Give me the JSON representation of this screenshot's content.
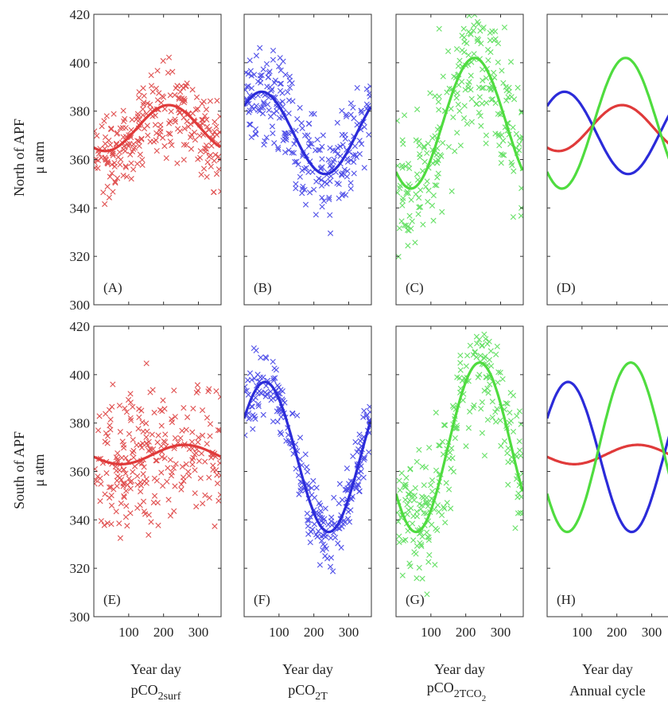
{
  "figure": {
    "rows": [
      {
        "ylabel_line1": "North of APF",
        "ylabel_line2": "μ atm"
      },
      {
        "ylabel_line1": "South of APF",
        "ylabel_line2": "μ atm"
      }
    ],
    "columns": [
      {
        "xlabel": "Year day",
        "sublabel_main": "pCO",
        "sublabel_sub": "2surf",
        "sublabel_subsub": ""
      },
      {
        "xlabel": "Year day",
        "sublabel_main": "pCO",
        "sublabel_sub": "2T",
        "sublabel_subsub": ""
      },
      {
        "xlabel": "Year day",
        "sublabel_main": "pCO",
        "sublabel_sub": "2TCO",
        "sublabel_subsub": "2"
      },
      {
        "xlabel": "Year day",
        "sublabel_main": "Annual cycle",
        "sublabel_sub": "",
        "sublabel_subsub": ""
      }
    ],
    "y_ticks": [
      "300",
      "320",
      "340",
      "360",
      "380",
      "400",
      "420"
    ],
    "x_ticks": [
      "100",
      "200",
      "300"
    ]
  },
  "chart_data": [
    {
      "panel": "(A)",
      "row": 0,
      "col": 0,
      "type": "scatter",
      "xlim": [
        0,
        365
      ],
      "ylim": [
        300,
        420
      ],
      "series": [
        {
          "kind": "scatter",
          "color": "#e05050",
          "mean": 373,
          "amp": 9.5,
          "phase": 215,
          "noise": 9
        },
        {
          "kind": "line",
          "color": "#e03a3a",
          "mean": 373,
          "amp": 9.5,
          "phase": 215
        }
      ]
    },
    {
      "panel": "(B)",
      "row": 0,
      "col": 1,
      "type": "scatter",
      "xlim": [
        0,
        365
      ],
      "ylim": [
        300,
        420
      ],
      "series": [
        {
          "kind": "scatter",
          "color": "#5050e8",
          "mean": 371,
          "amp": 17,
          "phase": 50,
          "noise": 10
        },
        {
          "kind": "line",
          "color": "#2b2bd9",
          "mean": 371,
          "amp": 17,
          "phase": 50
        }
      ]
    },
    {
      "panel": "(C)",
      "row": 0,
      "col": 2,
      "type": "scatter",
      "xlim": [
        0,
        365
      ],
      "ylim": [
        300,
        420
      ],
      "series": [
        {
          "kind": "scatter",
          "color": "#66e066",
          "mean": 375,
          "amp": 27,
          "phase": 225,
          "noise": 14
        },
        {
          "kind": "line",
          "color": "#4fdc3f",
          "mean": 375,
          "amp": 27,
          "phase": 225
        }
      ]
    },
    {
      "panel": "(D)",
      "row": 0,
      "col": 3,
      "type": "line",
      "xlim": [
        0,
        365
      ],
      "ylim": [
        300,
        420
      ],
      "series": [
        {
          "kind": "line",
          "color": "#e03a3a",
          "mean": 373,
          "amp": 9.5,
          "phase": 215
        },
        {
          "kind": "line",
          "color": "#2b2bd9",
          "mean": 371,
          "amp": 17,
          "phase": 50
        },
        {
          "kind": "line",
          "color": "#4fdc3f",
          "mean": 375,
          "amp": 27,
          "phase": 225
        }
      ]
    },
    {
      "panel": "(E)",
      "row": 1,
      "col": 0,
      "type": "scatter",
      "xlim": [
        0,
        365
      ],
      "ylim": [
        300,
        420
      ],
      "series": [
        {
          "kind": "scatter",
          "color": "#e05050",
          "mean": 367,
          "amp": 4,
          "phase": 260,
          "noise": 14
        },
        {
          "kind": "line",
          "color": "#e03a3a",
          "mean": 367,
          "amp": 4,
          "phase": 260
        }
      ]
    },
    {
      "panel": "(F)",
      "row": 1,
      "col": 1,
      "type": "scatter",
      "xlim": [
        0,
        365
      ],
      "ylim": [
        300,
        420
      ],
      "series": [
        {
          "kind": "scatter",
          "color": "#5050e8",
          "mean": 366,
          "amp": 31,
          "phase": 60,
          "noise": 7
        },
        {
          "kind": "line",
          "color": "#2b2bd9",
          "mean": 366,
          "amp": 31,
          "phase": 60
        }
      ]
    },
    {
      "panel": "(G)",
      "row": 1,
      "col": 2,
      "type": "scatter",
      "xlim": [
        0,
        365
      ],
      "ylim": [
        300,
        420
      ],
      "series": [
        {
          "kind": "scatter",
          "color": "#66e066",
          "mean": 370,
          "amp": 35,
          "phase": 240,
          "noise": 13
        },
        {
          "kind": "line",
          "color": "#4fdc3f",
          "mean": 370,
          "amp": 35,
          "phase": 240
        }
      ]
    },
    {
      "panel": "(H)",
      "row": 1,
      "col": 3,
      "type": "line",
      "xlim": [
        0,
        365
      ],
      "ylim": [
        300,
        420
      ],
      "series": [
        {
          "kind": "line",
          "color": "#e03a3a",
          "mean": 367,
          "amp": 4,
          "phase": 260
        },
        {
          "kind": "line",
          "color": "#2b2bd9",
          "mean": 366,
          "amp": 31,
          "phase": 60
        },
        {
          "kind": "line",
          "color": "#4fdc3f",
          "mean": 370,
          "amp": 35,
          "phase": 240
        }
      ]
    }
  ]
}
